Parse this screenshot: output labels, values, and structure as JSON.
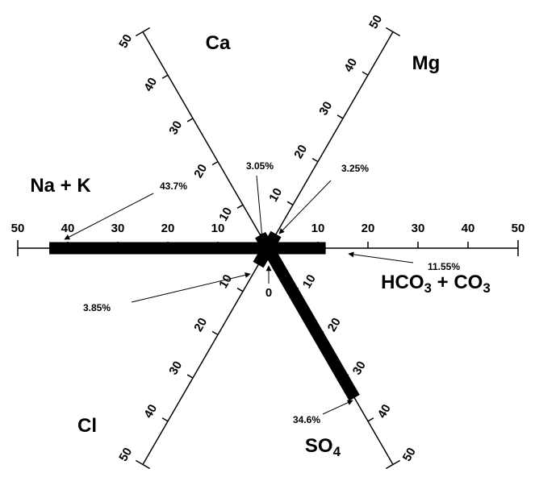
{
  "chart_data": {
    "type": "star",
    "lim": [
      0,
      50
    ],
    "ticks": [
      10,
      20,
      30,
      40,
      50
    ],
    "origin_tick": 0,
    "color": "#000000",
    "axes": [
      {
        "name": "Na + K",
        "value": 43.7,
        "value_label": "43.7%"
      },
      {
        "name": "Ca",
        "value": 3.05,
        "value_label": "3.05%"
      },
      {
        "name": "Mg",
        "value": 3.25,
        "value_label": "3.25%"
      },
      {
        "name": "HCO3 + CO3",
        "value": 11.55,
        "value_label": "11.55%"
      },
      {
        "name": "Cl",
        "value": 3.85,
        "value_label": "3.85%"
      },
      {
        "name": "SO4",
        "value": 34.6,
        "value_label": "34.6%"
      }
    ]
  }
}
